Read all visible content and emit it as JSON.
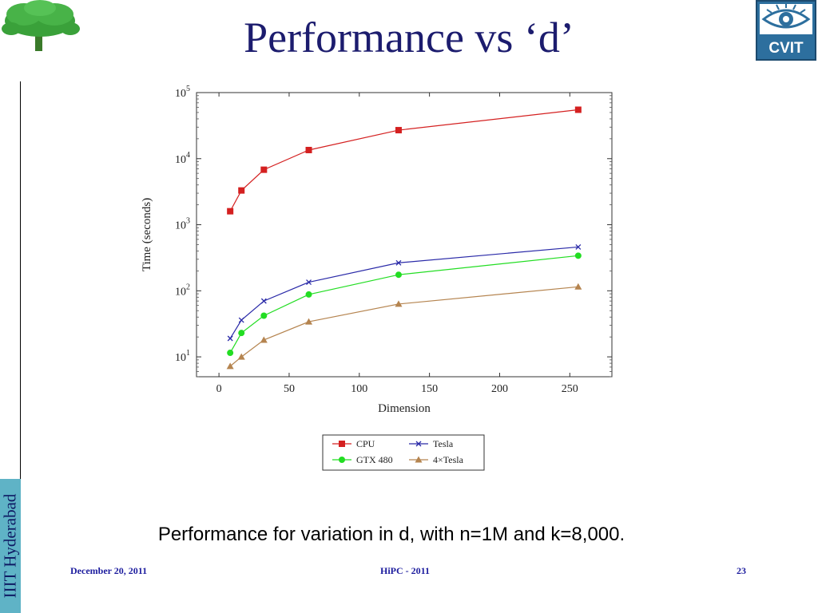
{
  "slide": {
    "title": "Performance vs ‘d’",
    "caption": "Performance for variation in d, with n=1M and k=8,000.",
    "side_label": "IIIT Hyderabad",
    "logo_right_text": "CVIT",
    "footer": {
      "date": "December 20, 2011",
      "conference": "HiPC - 2011",
      "page": "23"
    }
  },
  "chart_data": {
    "type": "line",
    "xlabel": "Dimension",
    "ylabel": "Time (seconds)",
    "xlim": [
      -16,
      280
    ],
    "ylim": [
      5,
      100000
    ],
    "y_scale": "log",
    "x_ticks": [
      0,
      50,
      100,
      150,
      200,
      250
    ],
    "y_ticks": [
      10,
      100,
      1000,
      10000,
      100000
    ],
    "y_tick_labels": [
      {
        "base": "10",
        "exp": "1"
      },
      {
        "base": "10",
        "exp": "2"
      },
      {
        "base": "10",
        "exp": "3"
      },
      {
        "base": "10",
        "exp": "4"
      },
      {
        "base": "10",
        "exp": "5"
      }
    ],
    "grid": false,
    "legend_position": "below-center",
    "x": [
      8,
      16,
      32,
      64,
      128,
      256
    ],
    "series": [
      {
        "name": "CPU",
        "color": "#d42020",
        "marker": "square",
        "values": [
          1600,
          3300,
          6800,
          13500,
          27000,
          55000
        ]
      },
      {
        "name": "Tesla",
        "color": "#2a2aa8",
        "marker": "cross",
        "values": [
          19,
          36,
          70,
          135,
          265,
          460
        ]
      },
      {
        "name": "GTX 480",
        "color": "#22dd22",
        "marker": "circle",
        "values": [
          11.5,
          23,
          42,
          88,
          175,
          340
        ]
      },
      {
        "name": "4×Tesla",
        "color": "#b5844f",
        "marker": "triangle",
        "values": [
          7.2,
          10,
          18,
          34,
          63,
          115
        ]
      }
    ]
  }
}
